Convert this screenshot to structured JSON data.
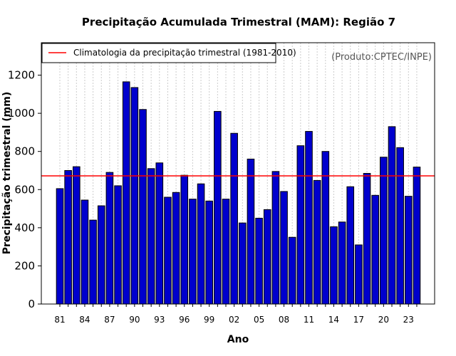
{
  "chart_data": {
    "type": "bar",
    "title": "Precipitação Acumulada Trimestral (MAM): Região 7",
    "xlabel": "Ano",
    "ylabel": "Precipitação trimestral (mm)",
    "source": "(Produto:CPTEC/INPE)",
    "ylim": [
      0,
      1370
    ],
    "yticks": [
      0,
      200,
      400,
      600,
      800,
      1000,
      1200
    ],
    "years": [
      1981,
      1982,
      1983,
      1984,
      1985,
      1986,
      1987,
      1988,
      1989,
      1990,
      1991,
      1992,
      1993,
      1994,
      1995,
      1996,
      1997,
      1998,
      1999,
      2000,
      2001,
      2002,
      2003,
      2004,
      2005,
      2006,
      2007,
      2008,
      2009,
      2010,
      2011,
      2012,
      2013,
      2014,
      2015,
      2016,
      2017,
      2018,
      2019,
      2020,
      2021,
      2022,
      2023,
      2024
    ],
    "xtick_labels": [
      {
        "index": 0,
        "label": "81"
      },
      {
        "index": 3,
        "label": "84"
      },
      {
        "index": 6,
        "label": "87"
      },
      {
        "index": 9,
        "label": "90"
      },
      {
        "index": 12,
        "label": "93"
      },
      {
        "index": 15,
        "label": "96"
      },
      {
        "index": 18,
        "label": "99"
      },
      {
        "index": 21,
        "label": "02"
      },
      {
        "index": 24,
        "label": "05"
      },
      {
        "index": 27,
        "label": "08"
      },
      {
        "index": 30,
        "label": "11"
      },
      {
        "index": 33,
        "label": "14"
      },
      {
        "index": 36,
        "label": "17"
      },
      {
        "index": 39,
        "label": "20"
      },
      {
        "index": 42,
        "label": "23"
      }
    ],
    "values": [
      605,
      700,
      720,
      545,
      440,
      515,
      690,
      620,
      1165,
      1135,
      1020,
      710,
      740,
      560,
      585,
      675,
      550,
      630,
      540,
      1010,
      550,
      895,
      425,
      760,
      450,
      495,
      695,
      590,
      350,
      830,
      905,
      648,
      800,
      405,
      430,
      615,
      310,
      685,
      570,
      770,
      930,
      820,
      565,
      718
    ],
    "climatology": {
      "label": "Climatologia da precipitação trimestral (1981-2010)",
      "value": 672
    },
    "legend_position": "top-left",
    "grid": "vertical-dotted",
    "colors": {
      "bar_fill": "#0000CD",
      "bar_stroke": "#000000",
      "climatology_line": "#FF0000",
      "grid": "#CCCCCC"
    }
  }
}
